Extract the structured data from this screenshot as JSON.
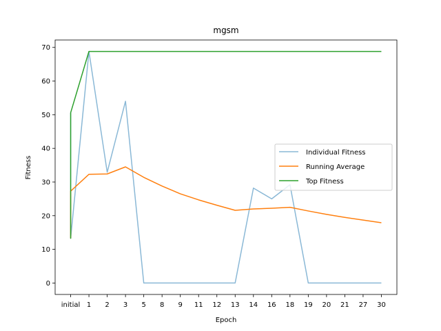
{
  "chart_data": {
    "type": "line",
    "title": "mgsm",
    "xlabel": "Epoch",
    "ylabel": "Fitness",
    "categories": [
      "initial",
      "1",
      "2",
      "3",
      "5",
      "8",
      "9",
      "11",
      "12",
      "13",
      "14",
      "16",
      "18",
      "19",
      "20",
      "21",
      "27",
      "30"
    ],
    "ylim": [
      -3.4,
      72.2
    ],
    "yticks": [
      0,
      10,
      20,
      30,
      40,
      50,
      60,
      70
    ],
    "grid": false,
    "legend_position": "center-right",
    "initial_points": {
      "x": [
        0,
        0,
        0,
        0,
        0
      ],
      "individual": [
        50.6,
        13.3,
        13.3,
        13.3,
        13.3
      ],
      "running": [
        13.3,
        27.3,
        27.3,
        27.3,
        27.3
      ],
      "top": [
        50.6,
        13.3,
        50.6,
        50.6,
        50.6
      ]
    },
    "series": [
      {
        "name": "Individual Fitness",
        "color": "#8ab8d6",
        "values": [
          13.3,
          68.8,
          32.9,
          54.0,
          0.0,
          0.0,
          0.0,
          0.0,
          0.0,
          0.0,
          28.2,
          25.0,
          29.2,
          0.0,
          0.0,
          0.0,
          0.0,
          0.0
        ]
      },
      {
        "name": "Running Average",
        "color": "#ff7f0e",
        "values": [
          27.3,
          32.3,
          32.4,
          34.5,
          31.4,
          28.8,
          26.5,
          24.7,
          23.1,
          21.6,
          22.0,
          22.2,
          22.5,
          21.4,
          20.4,
          19.5,
          18.7,
          17.9
        ]
      },
      {
        "name": "Top Fitness",
        "color": "#2ca02c",
        "values": [
          50.6,
          68.8,
          68.8,
          68.8,
          68.8,
          68.8,
          68.8,
          68.8,
          68.8,
          68.8,
          68.8,
          68.8,
          68.8,
          68.8,
          68.8,
          68.8,
          68.8,
          68.8
        ]
      }
    ]
  }
}
